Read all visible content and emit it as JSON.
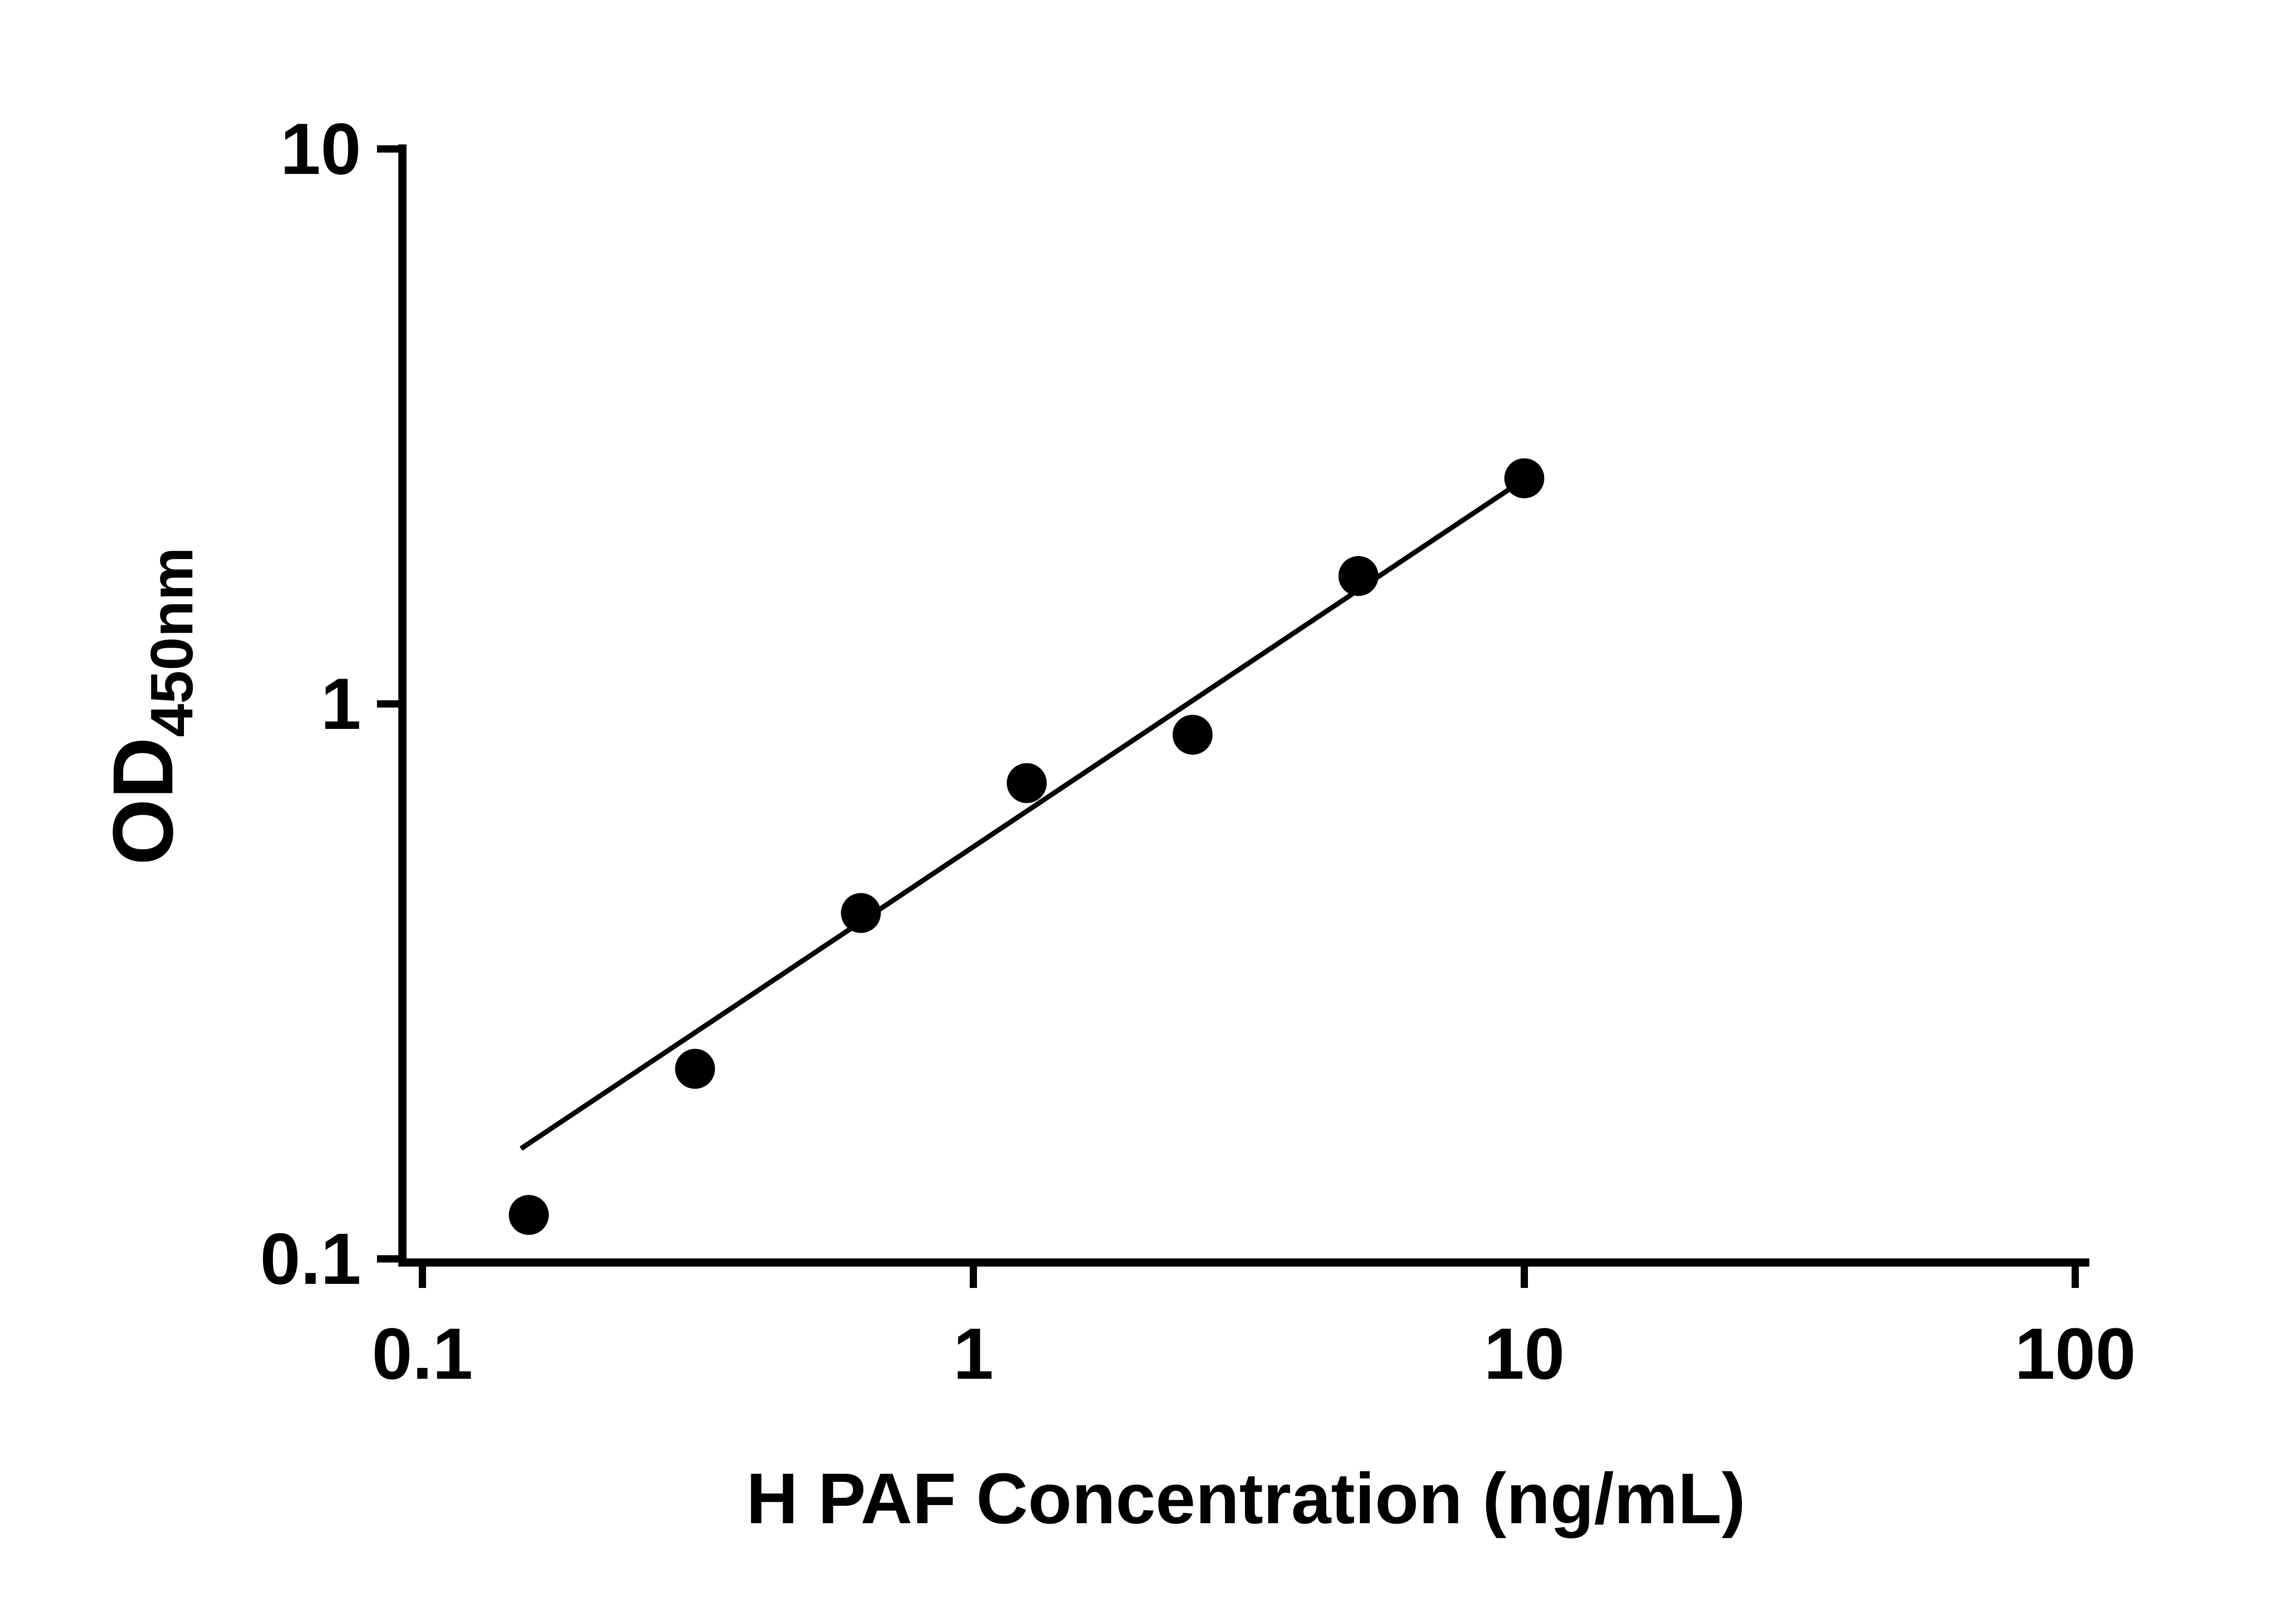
{
  "chart_data": {
    "type": "scatter",
    "title": "",
    "xlabel": "H PAF Concentration (ng/mL)",
    "ylabel_main": "OD",
    "ylabel_sub": "450nm",
    "x_scale": "log",
    "y_scale": "log",
    "xlim": [
      0.1,
      100
    ],
    "ylim": [
      0.1,
      10
    ],
    "grid": false,
    "legend": "none",
    "x_ticks": [
      0.1,
      1,
      10,
      100
    ],
    "x_tick_labels": [
      "0.1",
      "1",
      "10",
      "100"
    ],
    "y_ticks": [
      10,
      1,
      0.1
    ],
    "y_tick_labels": [
      "10",
      "1",
      "0.1"
    ],
    "points": [
      {
        "x": 0.156,
        "y": 0.12
      },
      {
        "x": 0.3125,
        "y": 0.22
      },
      {
        "x": 0.625,
        "y": 0.42
      },
      {
        "x": 1.25,
        "y": 0.72
      },
      {
        "x": 2.5,
        "y": 0.88
      },
      {
        "x": 5,
        "y": 1.7
      },
      {
        "x": 10,
        "y": 2.55
      }
    ],
    "trend_line": {
      "x1": 0.151,
      "y1": 0.158,
      "x2": 10,
      "y2": 2.54
    },
    "marker_color": "#000000",
    "line_color": "#000000",
    "axis_color": "#000000"
  }
}
